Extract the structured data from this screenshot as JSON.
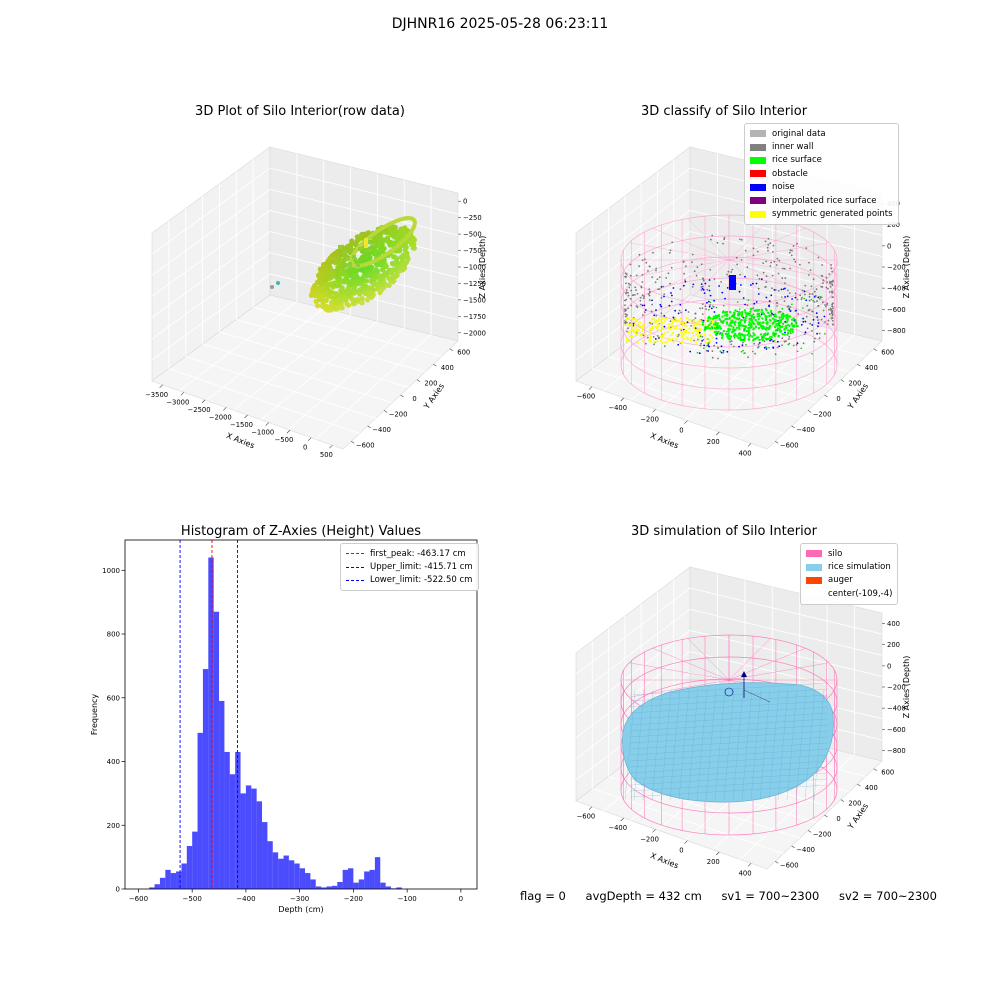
{
  "suptitle": "DJHNR16 2025-05-28 06:23:11",
  "panel1": {
    "title": "3D Plot of Silo Interior(row data)",
    "xlabel": "X Axies",
    "ylabel": "Y Axies",
    "zlabel": "Z Axies (Depth)",
    "xticks": [
      "−3500",
      "−3000",
      "−2500",
      "−2000",
      "−1500",
      "−1000",
      "−500",
      "0",
      "500"
    ],
    "yticks": [
      "−600",
      "−400",
      "−200",
      "0",
      "200",
      "400",
      "600"
    ],
    "zticks": [
      "0",
      "−250",
      "−500",
      "−750",
      "−1000",
      "−1250",
      "−1500",
      "−1750",
      "−2000"
    ]
  },
  "panel2": {
    "title": "3D classify of Silo Interior",
    "xlabel": "X Axies",
    "ylabel": "Y Axies",
    "zlabel": "Z Axies (Depth)",
    "xticks": [
      "−600",
      "−400",
      "−200",
      "0",
      "200",
      "400"
    ],
    "yticks": [
      "−600",
      "−400",
      "−200",
      "0",
      "200",
      "400",
      "600"
    ],
    "zticks": [
      "400",
      "200",
      "0",
      "−200",
      "−400",
      "−600",
      "−800"
    ],
    "legend": [
      {
        "label": "original data",
        "color": "#b3b3b3"
      },
      {
        "label": "inner wall",
        "color": "#808080"
      },
      {
        "label": "rice surface",
        "color": "#00ff00"
      },
      {
        "label": "obstacle",
        "color": "#ff0000"
      },
      {
        "label": "noise",
        "color": "#0000ff"
      },
      {
        "label": "interpolated rice surface",
        "color": "#800080"
      },
      {
        "label": "symmetric generated points",
        "color": "#ffff00"
      }
    ]
  },
  "panel4": {
    "title": "3D simulation of Silo Interior",
    "xlabel": "X Axies",
    "ylabel": "Y Axies",
    "zlabel": "Z Axies (Depth)",
    "xticks": [
      "−600",
      "−400",
      "−200",
      "0",
      "200",
      "400"
    ],
    "yticks": [
      "−600",
      "−400",
      "−200",
      "0",
      "200",
      "400",
      "600"
    ],
    "zticks": [
      "400",
      "200",
      "0",
      "−200",
      "−400",
      "−600",
      "−800"
    ],
    "legend": [
      {
        "label": "silo",
        "color": "#ff69b4"
      },
      {
        "label": "rice simulation",
        "color": "#87ceeb"
      },
      {
        "label": "auger",
        "color": "#ff4500"
      },
      {
        "label": "center(-109,-4)",
        "color": ""
      }
    ]
  },
  "footer": {
    "flag": "flag = 0",
    "avg_depth": "avgDepth = 432 cm",
    "sv1": "sv1 = 700~2300",
    "sv2": "sv2 = 700~2300"
  },
  "chart_data": {
    "type": "bar",
    "title": "Histogram of Z-Axies (Height) Values",
    "xlabel": "Depth (cm)",
    "ylabel": "Frequency",
    "xlim": [
      -625,
      30
    ],
    "ylim": [
      0,
      1095
    ],
    "xticks": [
      -600,
      -500,
      -400,
      -300,
      -200,
      -100,
      0
    ],
    "yticks": [
      0,
      200,
      400,
      600,
      800,
      1000
    ],
    "bin_width": 10,
    "bin_start": -580,
    "values": [
      5,
      15,
      35,
      60,
      50,
      55,
      80,
      135,
      180,
      490,
      690,
      1040,
      870,
      590,
      430,
      360,
      430,
      300,
      325,
      315,
      275,
      210,
      150,
      115,
      95,
      105,
      90,
      80,
      65,
      50,
      30,
      8,
      5,
      8,
      10,
      22,
      60,
      65,
      20,
      30,
      55,
      60,
      100,
      20,
      8,
      2,
      5
    ],
    "color": "#0000ff",
    "vlines": [
      {
        "label": "first_peak: -463.17 cm",
        "x": -463.17,
        "color": "#ff0000"
      },
      {
        "label": "Upper_limit: -415.71 cm",
        "x": -415.71,
        "color": "#0000ff"
      },
      {
        "label": "Lower_limit: -522.50 cm",
        "x": -522.5,
        "color": "#0000ff"
      }
    ],
    "legend": "top-right",
    "grid": false
  }
}
